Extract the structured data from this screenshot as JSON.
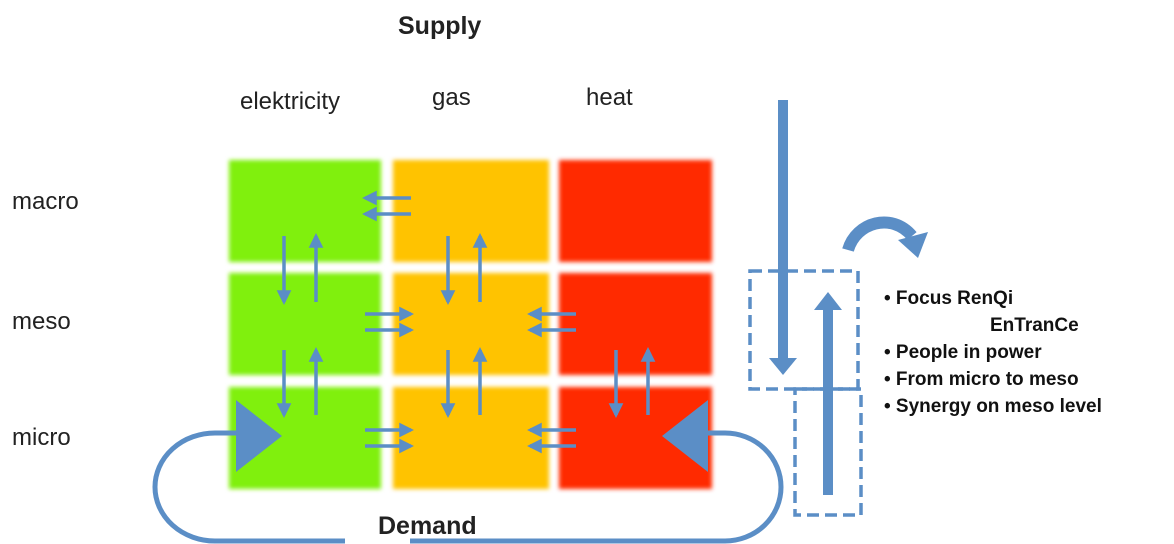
{
  "titles": {
    "supply": "Supply",
    "demand": "Demand"
  },
  "columns": [
    "elektricity",
    "gas",
    "heat"
  ],
  "rows": [
    "macro",
    "meso",
    "micro"
  ],
  "bullets": [
    "• Focus  RenQi",
    "EnTranCe",
    "• People in power",
    "• From micro to meso",
    "• Synergy on meso level"
  ],
  "colors": {
    "elektricity": "#80f010",
    "gas": "#ffc300",
    "heat": "#ff2a00",
    "arrow": "#5b8ec6"
  }
}
